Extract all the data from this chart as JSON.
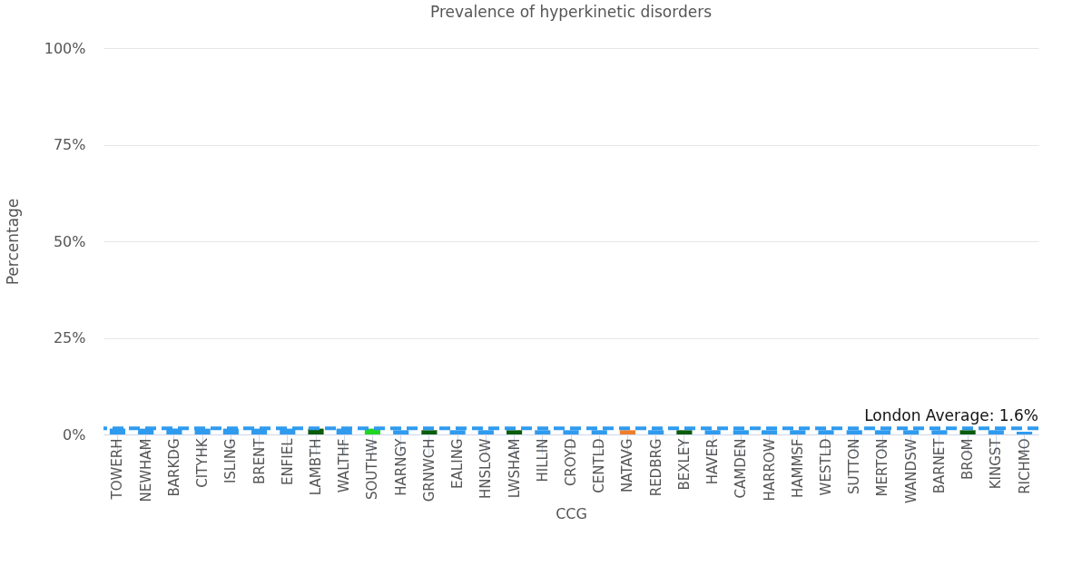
{
  "chart_data": {
    "type": "bar",
    "title": "Prevalence of hyperkinetic disorders",
    "xlabel": "CCG",
    "ylabel": "Percentage",
    "categories": [
      "TOWERH",
      "NEWHAM",
      "BARKDG",
      "CITYHK",
      "ISLING",
      "BRENT",
      "ENFIEL",
      "LAMBTH",
      "WALTHF",
      "SOUTHW",
      "HARNGY",
      "GRNWCH",
      "EALING",
      "HNSLOW",
      "LWSHAM",
      "HILLIN",
      "CROYD",
      "CENTLD",
      "NATAVG",
      "REDBRG",
      "BEXLEY",
      "HAVER",
      "CAMDEN",
      "HARROW",
      "HAMMSF",
      "WESTLD",
      "SUTTON",
      "MERTON",
      "WANDSW",
      "BARNET",
      "BROM",
      "KINGST",
      "RICHMO"
    ],
    "values": [
      1.5,
      1.5,
      1.5,
      1.5,
      1.5,
      1.5,
      1.5,
      1.5,
      1.5,
      1.5,
      1.1,
      1.1,
      1.1,
      1.1,
      1.1,
      1.1,
      1.1,
      1.1,
      1.1,
      1.1,
      1.1,
      1.1,
      1.1,
      1.1,
      1.1,
      1.1,
      1.1,
      1.1,
      1.1,
      1.1,
      1.1,
      1.1,
      0.7
    ],
    "colors": [
      "#2f9bef",
      "#2f9bef",
      "#2f9bef",
      "#2f9bef",
      "#2f9bef",
      "#2f9bef",
      "#2f9bef",
      "#0b5c0b",
      "#2f9bef",
      "#21d621",
      "#2f9bef",
      "#0b5c0b",
      "#2f9bef",
      "#2f9bef",
      "#0b5c0b",
      "#2f9bef",
      "#2f9bef",
      "#2f9bef",
      "#f07d2c",
      "#2f9bef",
      "#0b5c0b",
      "#2f9bef",
      "#2f9bef",
      "#2f9bef",
      "#2f9bef",
      "#2f9bef",
      "#2f9bef",
      "#2f9bef",
      "#2f9bef",
      "#2f9bef",
      "#0b5c0b",
      "#2f9bef",
      "#2f9bef"
    ],
    "ylim": [
      0,
      100
    ],
    "yticks": [
      {
        "value": 0,
        "label": "0%"
      },
      {
        "value": 25,
        "label": "25%"
      },
      {
        "value": 50,
        "label": "50%"
      },
      {
        "value": 75,
        "label": "75%"
      },
      {
        "value": 100,
        "label": "100%"
      }
    ],
    "grid": "y",
    "ref_lines": [
      {
        "axis": "y",
        "value": 1.6,
        "label": "London Average: 1.6%",
        "color": "#2f9bef",
        "line_style": "dashed"
      }
    ]
  }
}
